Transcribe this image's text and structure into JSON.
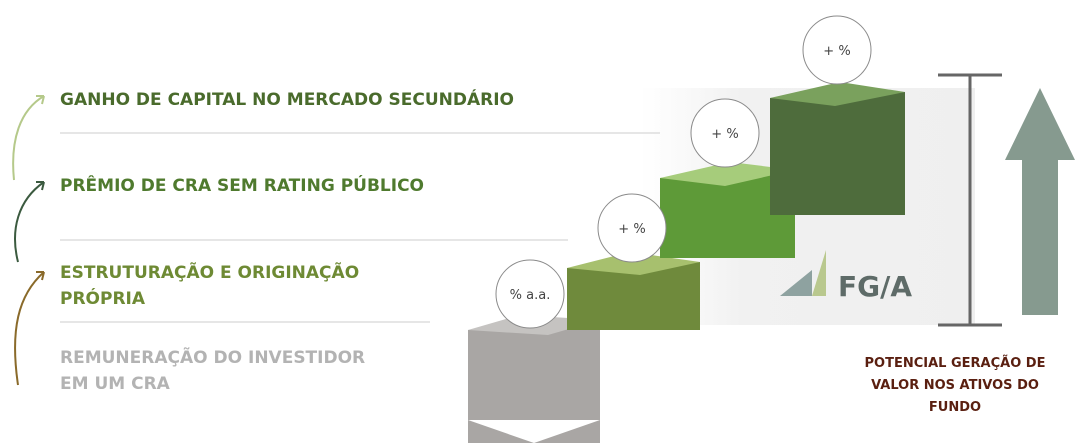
{
  "levels": [
    {
      "label_lines": [
        "GANHO DE CAPITAL NO MERCADO SECUNDÁRIO"
      ],
      "badge": "+ %"
    },
    {
      "label_lines": [
        "PRÊMIO DE CRA SEM RATING PÚBLICO"
      ],
      "badge": "+ %"
    },
    {
      "label_lines": [
        "ESTRUTURAÇÃO E ORIGINAÇÃO",
        "PRÓPRIA"
      ],
      "badge": "+ %"
    },
    {
      "label_lines": [
        "REMUNERAÇÃO DO INVESTIDOR",
        "EM UM CRA"
      ],
      "badge": "% a.a."
    }
  ],
  "logo": "FG/A",
  "caption_lines": [
    "POTENCIAL GERAÇÃO DE",
    "VALOR NOS ATIVOS DO",
    "FUNDO"
  ]
}
